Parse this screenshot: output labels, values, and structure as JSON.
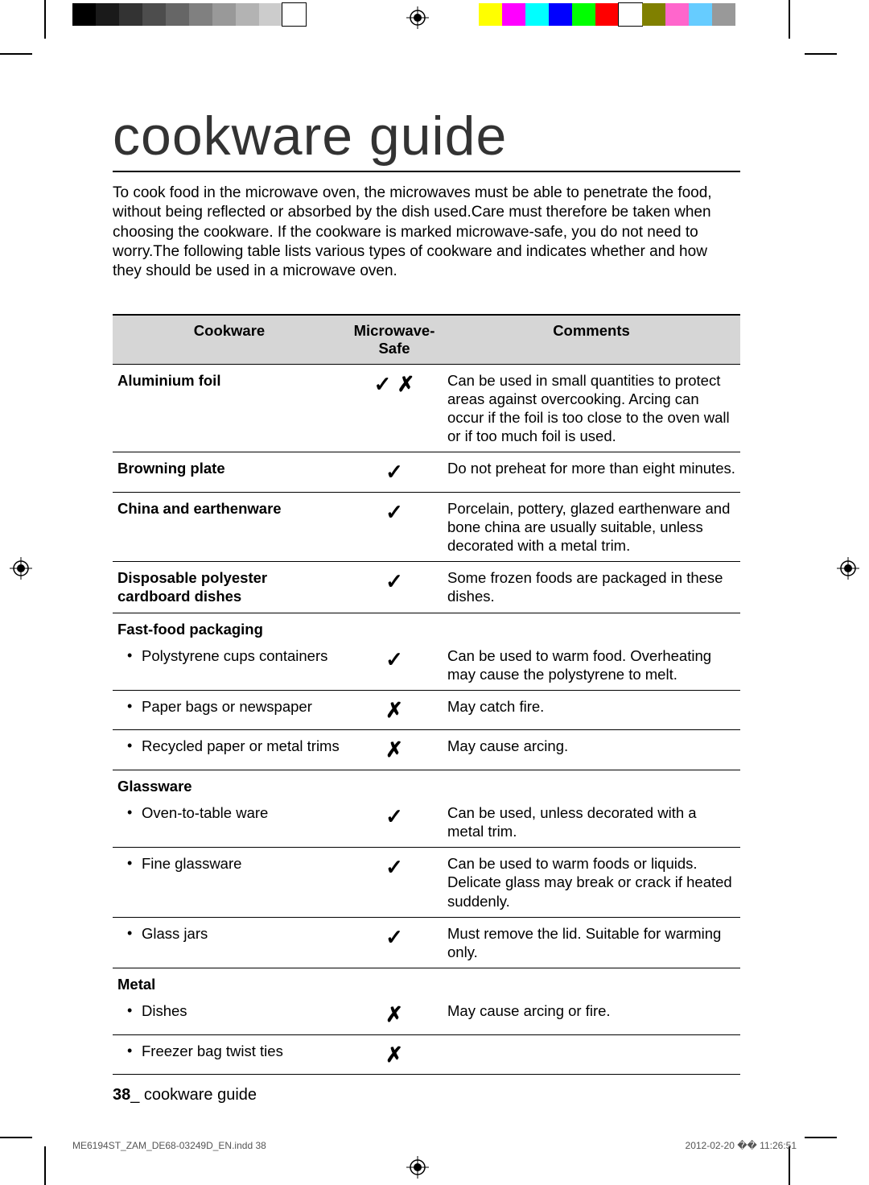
{
  "colorbars": {
    "left_colors": [
      "#000000",
      "#1a1a1a",
      "#333333",
      "#4d4d4d",
      "#666666",
      "#808080",
      "#999999",
      "#b3b3b3",
      "#cccccc",
      "#ffffff"
    ],
    "right_colors": [
      "#ffff00",
      "#ff00ff",
      "#00ffff",
      "#0000ff",
      "#00ff00",
      "#ff0000",
      "#ffffff",
      "#808000",
      "#ff66cc",
      "#66ccff",
      "#999999"
    ]
  },
  "title": "cookware guide",
  "intro": "To cook food in the microwave oven, the microwaves must be able to penetrate the food, without being reflected or absorbed by the dish used.Care must therefore be taken when choosing the cookware. If the cookware is marked microwave-safe, you do not need to worry.The following table lists various types of cookware and indicates whether and how they should be used in a microwave oven.",
  "headers": {
    "cookware": "Cookware",
    "safe": "Microwave-\nSafe",
    "comments": "Comments"
  },
  "rows": [
    {
      "cookware": "Aluminium foil",
      "bold": true,
      "safe": "✓ ✗",
      "comments": "Can be used in small quantities to protect areas against overcooking. Arcing can occur if the foil is too close to the oven wall or if too much foil is used."
    },
    {
      "cookware": "Browning plate",
      "bold": true,
      "safe": "✓",
      "comments": "Do not preheat for more than eight minutes."
    },
    {
      "cookware": "China and earthenware",
      "bold": true,
      "safe": "✓",
      "comments": "Porcelain, pottery, glazed earthenware and bone china are usually suitable, unless decorated with a metal trim."
    },
    {
      "cookware": "Disposable polyester cardboard dishes",
      "bold": true,
      "safe": "✓",
      "comments": "Some frozen foods are packaged in these dishes."
    },
    {
      "cookware": "Fast-food packaging",
      "bold": true,
      "section": true
    },
    {
      "cookware": "Polystyrene cups containers",
      "sub": true,
      "safe": "✓",
      "comments": "Can be used to warm food. Overheating may cause the polystyrene to melt."
    },
    {
      "cookware": "Paper bags or newspaper",
      "sub": true,
      "safe": "✗",
      "comments": "May catch fire."
    },
    {
      "cookware": "Recycled paper or metal trims",
      "sub": true,
      "safe": "✗",
      "comments": "May cause arcing."
    },
    {
      "cookware": "Glassware",
      "bold": true,
      "section": true
    },
    {
      "cookware": "Oven-to-table ware",
      "sub": true,
      "safe": "✓",
      "comments": "Can be used, unless decorated with a metal trim."
    },
    {
      "cookware": "Fine glassware",
      "sub": true,
      "safe": "✓",
      "comments": "Can be used to warm foods or liquids. Delicate glass may break or crack if heated suddenly."
    },
    {
      "cookware": "Glass jars",
      "sub": true,
      "safe": "✓",
      "comments": "Must remove the lid. Suitable for warming only."
    },
    {
      "cookware": "Metal",
      "bold": true,
      "section": true
    },
    {
      "cookware": "Dishes",
      "sub": true,
      "safe": "✗",
      "comments": "May cause arcing or fire."
    },
    {
      "cookware": "Freezer bag twist ties",
      "sub": true,
      "safe": "✗",
      "comments": ""
    }
  ],
  "footer": {
    "page_num": "38",
    "page_label": "_ cookware guide",
    "file": "ME6194ST_ZAM_DE68-03249D_EN.indd   38",
    "timestamp": "2012-02-20   �� 11:26:51"
  }
}
